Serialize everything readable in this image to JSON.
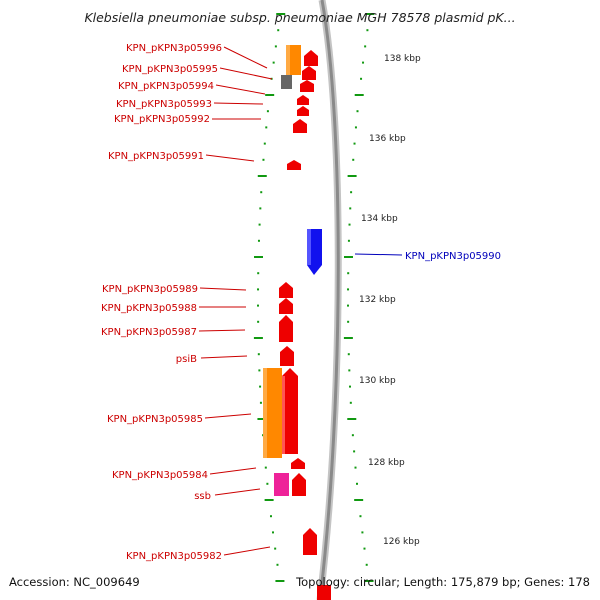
{
  "title": "Klebsiella pneumoniae subsp. pneumoniae MGH 78578 plasmid pK...",
  "footer": {
    "accession": "Accession: NC_009649",
    "summary": "Topology: circular; Length: 175,879 bp; Genes: 178"
  },
  "scale": {
    "unit": "kbp",
    "ticks": [
      "138 kbp",
      "136 kbp",
      "134 kbp",
      "132 kbp",
      "130 kbp",
      "128 kbp",
      "126 kbp"
    ]
  },
  "colors": {
    "forward_gene": "#ee0000",
    "reverse_gene": "#1111ee",
    "orange_feature": "#ff8800",
    "grey_feature": "#666666",
    "magenta_feature": "#ee2299",
    "backbone": "#999999",
    "tick_marks": "#119911"
  },
  "gene_labels": [
    "KPN_pKPN3p05996",
    "KPN_pKPN3p05995",
    "KPN_pKPN3p05994",
    "KPN_pKPN3p05993",
    "KPN_pKPN3p05992",
    "KPN_pKPN3p05991",
    "KPN_pKPN3p05990",
    "KPN_pKPN3p05989",
    "KPN_pKPN3p05988",
    "KPN_pKPN3p05987",
    "psiB",
    "KPN_pKPN3p05985",
    "KPN_pKPN3p05984",
    "ssb",
    "KPN_pKPN3p05982"
  ]
}
